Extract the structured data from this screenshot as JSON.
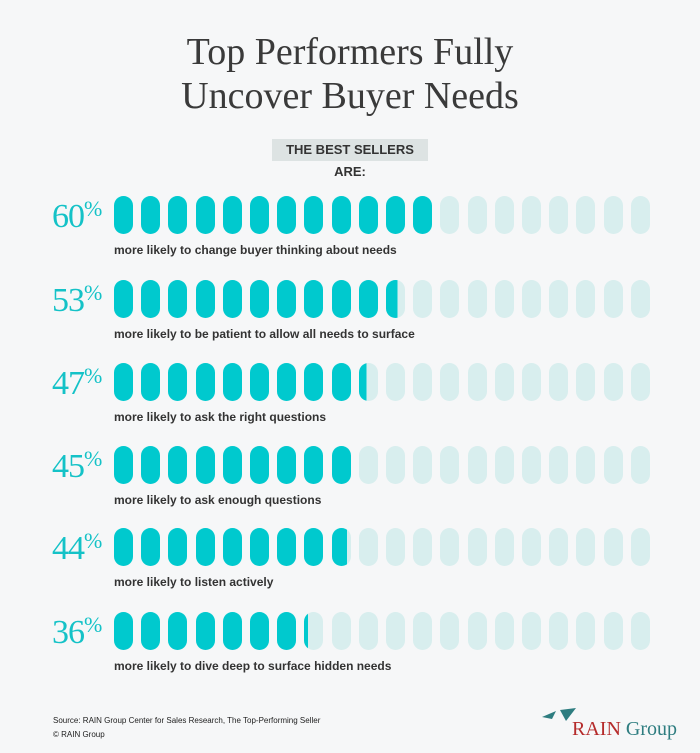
{
  "title_lines": [
    "Top Performers Fully",
    "Uncover Buyer Needs"
  ],
  "badge": "THE BEST SELLERS ARE:",
  "colors": {
    "filled": "#00c9ce",
    "empty": "#d8eeee",
    "percent": "#14c2c7"
  },
  "chart_data": {
    "type": "bar",
    "title": "Top Performers Fully Uncover Buyer Needs",
    "units_per_pill": 5,
    "pills_per_row": 20,
    "categories": [
      "more likely to change buyer thinking about needs",
      "more likely to be patient to allow all needs to surface",
      "more likely to ask the right questions",
      "more likely to ask enough questions",
      "more likely to listen actively",
      "more likely to dive deep to surface hidden needs"
    ],
    "values": [
      60,
      53,
      47,
      45,
      44,
      36
    ],
    "labels": [
      "60",
      "53",
      "47",
      "45",
      "44",
      "36"
    ],
    "ylim": [
      0,
      100
    ]
  },
  "footer": {
    "source": "Source: RAIN Group Center for Sales Research, The Top-Performing Seller",
    "copyright": "© RAIN Group"
  },
  "logo": {
    "text1": "RAIN",
    "text2": "Group"
  }
}
